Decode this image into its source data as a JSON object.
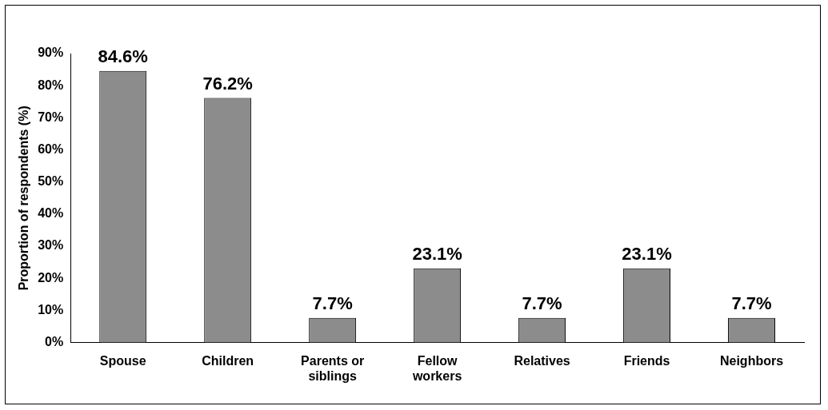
{
  "chart_data": {
    "type": "bar",
    "ylabel": "Proportion of respondents (%)",
    "categories": [
      "Spouse",
      "Children",
      "Parents or siblings",
      "Fellow workers",
      "Relatives",
      "Friends",
      "Neighbors"
    ],
    "values": [
      84.6,
      76.2,
      7.7,
      23.1,
      7.7,
      23.1,
      7.7
    ],
    "value_labels": [
      "84.6%",
      "76.2%",
      "7.7%",
      "23.1%",
      "7.7%",
      "23.1%",
      "7.7%"
    ],
    "color": "#8c8c8c",
    "ylim": [
      0,
      90
    ],
    "yticks": [
      {
        "value": 0,
        "label": "0%"
      },
      {
        "value": 10,
        "label": "10%"
      },
      {
        "value": 20,
        "label": "20%"
      },
      {
        "value": 30,
        "label": "30%"
      },
      {
        "value": 40,
        "label": "40%"
      },
      {
        "value": 50,
        "label": "50%"
      },
      {
        "value": 60,
        "label": "60%"
      },
      {
        "value": 70,
        "label": "70%"
      },
      {
        "value": 80,
        "label": "80%"
      },
      {
        "value": 90,
        "label": "90%"
      }
    ],
    "grid": false,
    "legend": false
  }
}
